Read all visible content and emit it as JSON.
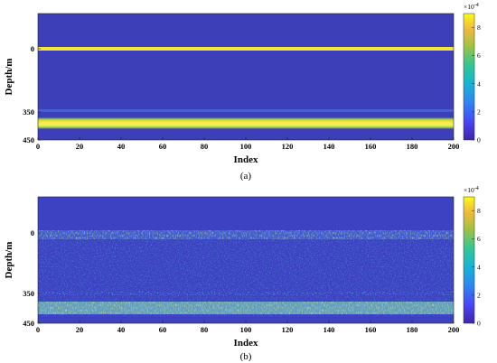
{
  "colors": {
    "background_field": "#3d3fb8",
    "reflector": "#f5e43a",
    "colormap": [
      "#3e26a8",
      "#4743f8",
      "#2e86f2",
      "#14b5d4",
      "#35c78f",
      "#a6c13f",
      "#f2ba3c",
      "#f9fb15"
    ]
  },
  "chart_data": [
    {
      "type": "heatmap",
      "caption": "(a)",
      "xlabel": "Index",
      "ylabel": "Depth/m",
      "xlim": [
        0,
        200
      ],
      "xticks": [
        "0",
        "20",
        "40",
        "60",
        "80",
        "100",
        "120",
        "140",
        "160",
        "180",
        "200"
      ],
      "yticks": [
        "0",
        "350",
        "450"
      ],
      "colorbar": {
        "range": [
          0,
          9
        ],
        "ticks": [
          "0",
          "2",
          "4",
          "6",
          "8"
        ],
        "exponent_label": "×10",
        "exponent": "-4"
      },
      "features": [
        {
          "depth_label": "0",
          "description": "thin strong reflector",
          "max_value": 9
        },
        {
          "depth_label": "350",
          "description": "weak reflector",
          "max_value": 2
        },
        {
          "depth_label": "between 350 and 450",
          "description": "thick strong reflector",
          "max_value": 9
        }
      ]
    },
    {
      "type": "heatmap",
      "caption": "(b)",
      "xlabel": "Index",
      "ylabel": "Depth/m",
      "xlim": [
        0,
        200
      ],
      "xticks": [
        "0",
        "20",
        "40",
        "60",
        "80",
        "100",
        "120",
        "140",
        "160",
        "180",
        "200"
      ],
      "yticks": [
        "0",
        "350",
        "450"
      ],
      "colorbar": {
        "range": [
          0,
          9
        ],
        "ticks": [
          "0",
          "2",
          "4",
          "6",
          "8"
        ],
        "exponent_label": "×10",
        "exponent": "-4"
      },
      "features": [
        {
          "depth_label": "0",
          "description": "noisy strong reflector band",
          "max_value": 9
        },
        {
          "depth_label": "350",
          "description": "noisy moderate reflector",
          "max_value": 5
        },
        {
          "depth_label": "between 350 and 450",
          "description": "noisy thick strong reflector",
          "max_value": 9
        }
      ]
    }
  ]
}
